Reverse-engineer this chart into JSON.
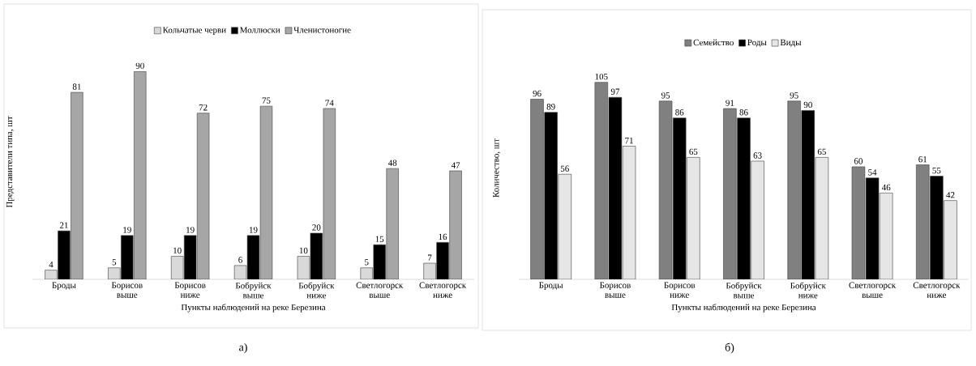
{
  "chart_data": [
    {
      "type": "bar",
      "categories": [
        "Броды",
        "Борисов выше",
        "Борисов ниже",
        "Бобруйск выше",
        "Бобруйск ниже",
        "Светлогорск выше",
        "Светлогорск ниже"
      ],
      "xlabel": "Пункты наблюдений на реке Березина",
      "ylabel": "Представители типа, шт",
      "legend": "top",
      "data_labels": true,
      "annotations": [
        "а)"
      ],
      "series": [
        {
          "name": "Кольчатые черви",
          "color": "#d9d9d9",
          "values": [
            4,
            5,
            10,
            6,
            10,
            5,
            7
          ]
        },
        {
          "name": "Моллюски",
          "color": "#000000",
          "values": [
            21,
            19,
            19,
            19,
            20,
            15,
            16
          ]
        },
        {
          "name": "Членистоногие",
          "color": "#a6a6a6",
          "values": [
            81,
            90,
            72,
            75,
            74,
            48,
            47
          ]
        }
      ]
    },
    {
      "type": "bar",
      "categories": [
        "Броды",
        "Борисов выше",
        "Борисов ниже",
        "Бобруйск выше",
        "Бобруйск ниже",
        "Светлогорск выше",
        "Светлогорск ниже"
      ],
      "xlabel": "Пункты наблюдений на реке Березина",
      "ylabel": "Количество, шт",
      "legend": "top",
      "data_labels": true,
      "annotations": [
        "б)"
      ],
      "series": [
        {
          "name": "Семейство",
          "color": "#808080",
          "values": [
            96,
            105,
            95,
            91,
            95,
            60,
            61
          ]
        },
        {
          "name": "Роды",
          "color": "#000000",
          "values": [
            89,
            97,
            86,
            86,
            90,
            54,
            55
          ]
        },
        {
          "name": "Виды",
          "color": "#e7e6e6",
          "values": [
            56,
            71,
            65,
            63,
            65,
            46,
            42
          ]
        }
      ]
    }
  ]
}
